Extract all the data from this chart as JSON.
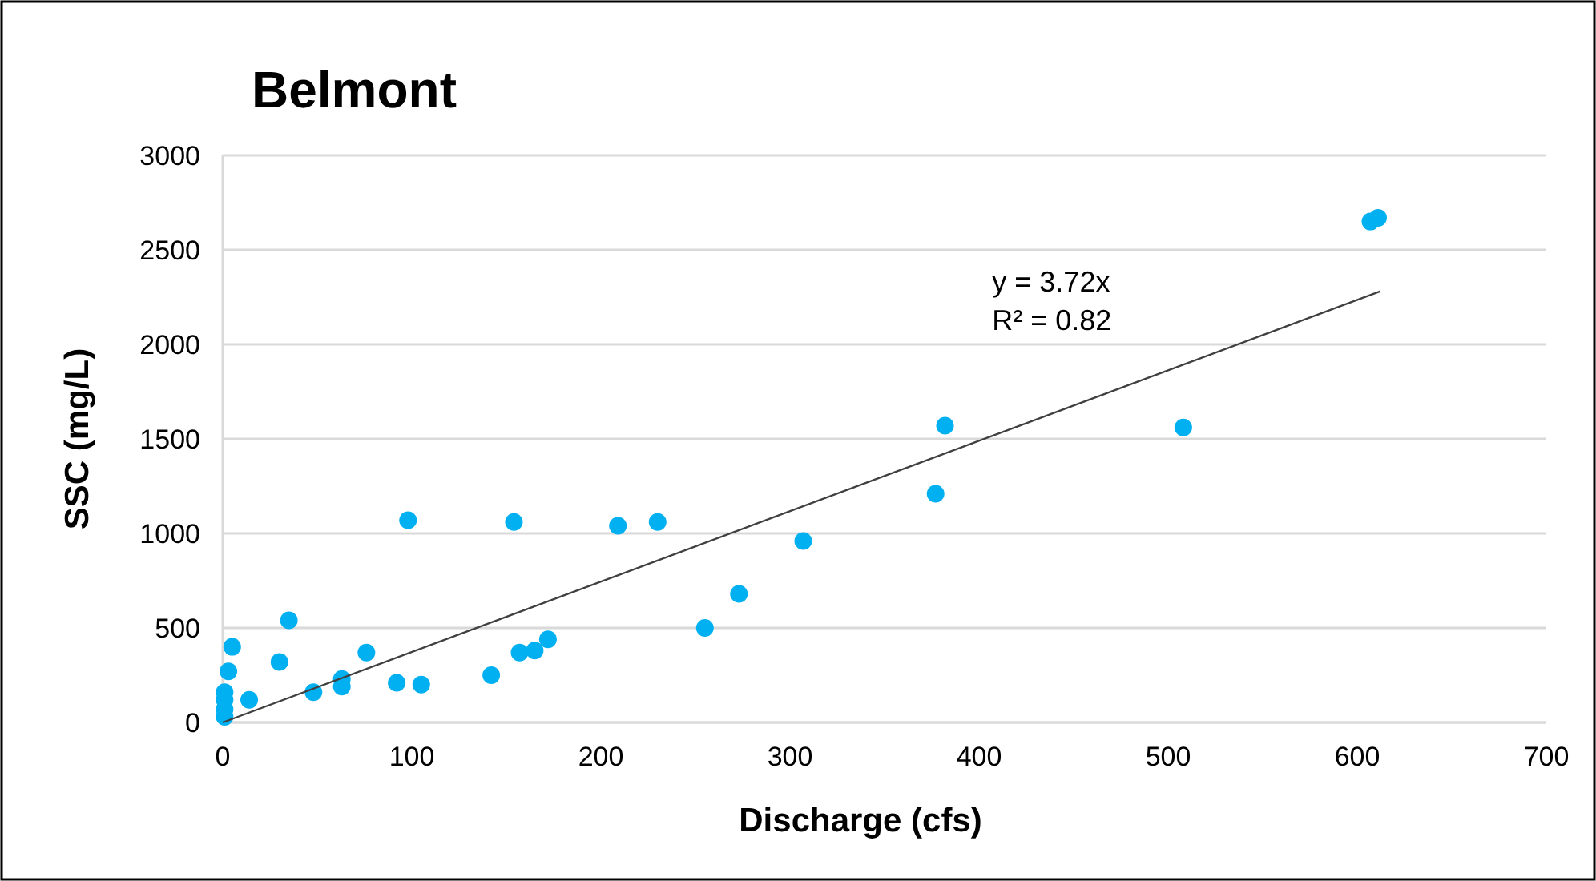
{
  "chart_data": {
    "type": "scatter",
    "title": "Belmont",
    "xlabel": "Discharge (cfs)",
    "ylabel": "SSC (mg/L)",
    "xlim": [
      0,
      700
    ],
    "xticks": [
      0,
      100,
      200,
      300,
      400,
      500,
      600,
      700
    ],
    "ylim": [
      0,
      3000
    ],
    "yticks": [
      0,
      500,
      1000,
      1500,
      2000,
      2500,
      3000
    ],
    "grid": "y",
    "series": [
      {
        "marker": "circle",
        "color": "#00b0f0",
        "x": [
          1,
          1,
          1,
          1,
          3,
          5,
          14,
          30,
          35,
          48,
          63,
          63,
          76,
          92,
          105,
          98,
          142,
          154,
          157,
          165,
          172,
          209,
          230,
          255,
          273,
          307,
          377,
          382,
          508,
          607,
          611
        ],
        "values": [
          30,
          70,
          120,
          160,
          270,
          400,
          120,
          320,
          540,
          160,
          230,
          190,
          370,
          210,
          200,
          1070,
          250,
          1060,
          370,
          380,
          440,
          1040,
          1060,
          500,
          680,
          960,
          1210,
          1570,
          1560,
          2650,
          2670
        ]
      },
      {
        "type": "line",
        "color": "#404040",
        "x": [
          0,
          612
        ],
        "values": [
          0,
          2280
        ]
      }
    ],
    "annotations": [
      "y = 3.72x",
      "R² = 0.82"
    ]
  }
}
